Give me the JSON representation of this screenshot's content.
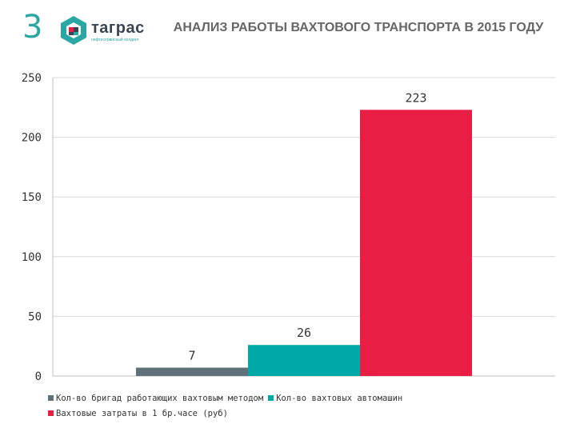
{
  "slide_number": "3",
  "logo": {
    "name": "таграс",
    "tagline": "нефтесервисный холдинг"
  },
  "header": {
    "title": "АНАЛИЗ РАБОТЫ ВАХТОВОГО ТРАНСПОРТА В 2015 ГОДУ"
  },
  "chart_data": {
    "type": "bar",
    "title": "",
    "xlabel": "",
    "ylabel": "",
    "ylim": [
      0,
      250
    ],
    "yticks": [
      0,
      50,
      100,
      150,
      200,
      250
    ],
    "grid": true,
    "legend_position": "bottom",
    "series": [
      {
        "name": "Кол-во бригад работающих вахтовым методом",
        "values": [
          7
        ],
        "color": "#5f7179"
      },
      {
        "name": "Кол-во вахтовых автомашин",
        "values": [
          26
        ],
        "color": "#00a9a5"
      },
      {
        "name": "Вахтовые затраты в 1 бр.часе (руб)",
        "values": [
          223
        ],
        "color": "#e91e45"
      }
    ]
  }
}
